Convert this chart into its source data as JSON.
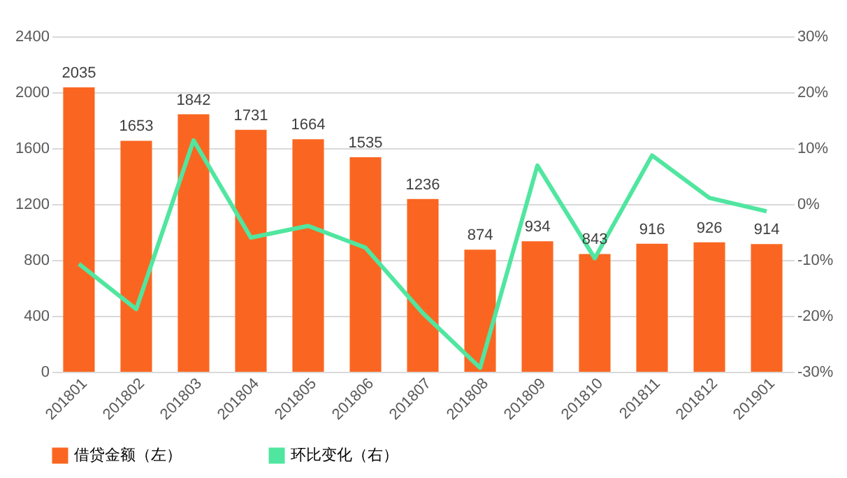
{
  "chart_data": {
    "type": "bar",
    "categories": [
      "201801",
      "201802",
      "201803",
      "201804",
      "201805",
      "201806",
      "201807",
      "201808",
      "201809",
      "201810",
      "201811",
      "201812",
      "201901"
    ],
    "series": [
      {
        "name": "借贷金额（左）",
        "color": "#fa6621",
        "values": [
          2035,
          1653,
          1842,
          1731,
          1664,
          1535,
          1236,
          874,
          934,
          843,
          916,
          926,
          914
        ],
        "value_labels": [
          "2035",
          "1653",
          "1842",
          "1731",
          "1664",
          "1535",
          "1236",
          "874",
          "934",
          "843",
          "916",
          "926",
          "914"
        ]
      },
      {
        "name": "环比变化（右）",
        "type": "line",
        "axis": "y2",
        "color": "#50e6a0",
        "values": [
          -10.7,
          -18.8,
          11.4,
          -6.0,
          -3.9,
          -7.8,
          -19.5,
          -29.3,
          6.9,
          -9.7,
          8.7,
          1.1,
          -1.3
        ]
      }
    ],
    "ylim": [
      0,
      2400
    ],
    "yticks": [
      0,
      400,
      800,
      1200,
      1600,
      2000,
      2400
    ],
    "y2lim": [
      -30,
      30
    ],
    "y2ticks": [
      {
        "value": -30,
        "label": "-30%"
      },
      {
        "value": -20,
        "label": "-20%"
      },
      {
        "value": -10,
        "label": "-10%"
      },
      {
        "value": 0,
        "label": "0%"
      },
      {
        "value": 10,
        "label": "10%"
      },
      {
        "value": 20,
        "label": "20%"
      },
      {
        "value": 30,
        "label": "30%"
      }
    ],
    "grid": "y",
    "legend": "bottom",
    "marker": "none",
    "line_style": "solid"
  }
}
